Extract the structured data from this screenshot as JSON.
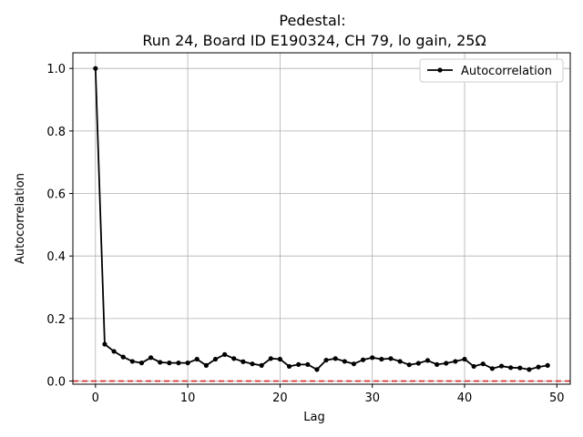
{
  "chart_data": {
    "type": "line",
    "title": "Pedestal:",
    "subtitle": "Run 24, Board ID E190324, CH 79, lo gain, 25Ω",
    "xlabel": "Lag",
    "ylabel": "Autocorrelation",
    "xlim": [
      -2.45,
      51.45
    ],
    "ylim": [
      -0.01,
      1.05
    ],
    "xticks": [
      0,
      10,
      20,
      30,
      40,
      50
    ],
    "yticks": [
      0.0,
      0.2,
      0.4,
      0.6,
      0.8,
      1.0
    ],
    "xtick_labels": [
      "0",
      "10",
      "20",
      "30",
      "40",
      "50"
    ],
    "ytick_labels": [
      "0.0",
      "0.2",
      "0.4",
      "0.6",
      "0.8",
      "1.0"
    ],
    "grid": true,
    "legend_position": "top-right",
    "series": [
      {
        "name": "Autocorrelation",
        "color": "#000000",
        "marker": "circle",
        "x": [
          0,
          1,
          2,
          3,
          4,
          5,
          6,
          7,
          8,
          9,
          10,
          11,
          12,
          13,
          14,
          15,
          16,
          17,
          18,
          19,
          20,
          21,
          22,
          23,
          24,
          25,
          26,
          27,
          28,
          29,
          30,
          31,
          32,
          33,
          34,
          35,
          36,
          37,
          38,
          39,
          40,
          41,
          42,
          43,
          44,
          45,
          46,
          47,
          48,
          49
        ],
        "values": [
          1.0,
          0.118,
          0.095,
          0.077,
          0.063,
          0.058,
          0.075,
          0.06,
          0.058,
          0.058,
          0.058,
          0.07,
          0.05,
          0.07,
          0.085,
          0.072,
          0.062,
          0.055,
          0.05,
          0.072,
          0.07,
          0.047,
          0.053,
          0.053,
          0.037,
          0.067,
          0.072,
          0.063,
          0.055,
          0.068,
          0.075,
          0.07,
          0.072,
          0.063,
          0.052,
          0.057,
          0.066,
          0.053,
          0.057,
          0.063,
          0.07,
          0.047,
          0.055,
          0.04,
          0.048,
          0.043,
          0.042,
          0.037,
          0.045,
          0.05
        ]
      }
    ],
    "reference_line": {
      "y": 0.0,
      "color": "#d62728",
      "style": "dashed"
    }
  }
}
